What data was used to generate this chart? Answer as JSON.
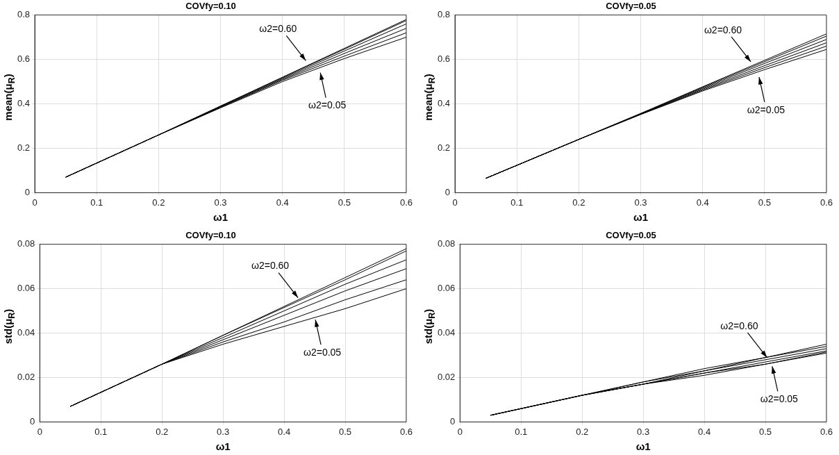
{
  "chart_data": [
    {
      "type": "line",
      "title": "COVfy=0.10",
      "xlabel": "ω1",
      "ylabel": "mean(μ$_{R}$)",
      "x": [
        0.05,
        0.2,
        0.3,
        0.4,
        0.5,
        0.6
      ],
      "series": [
        {
          "color": "#000000",
          "values": [
            0.07,
            0.26,
            0.39,
            0.52,
            0.65,
            0.78
          ]
        },
        {
          "color": "#000000",
          "values": [
            0.07,
            0.26,
            0.39,
            0.518,
            0.646,
            0.775
          ]
        },
        {
          "color": "#000000",
          "values": [
            0.07,
            0.26,
            0.388,
            0.514,
            0.638,
            0.76
          ]
        },
        {
          "color": "#000000",
          "values": [
            0.07,
            0.26,
            0.386,
            0.51,
            0.627,
            0.74
          ]
        },
        {
          "color": "#000000",
          "values": [
            0.07,
            0.26,
            0.384,
            0.506,
            0.615,
            0.72
          ]
        },
        {
          "color": "#000000",
          "values": [
            0.07,
            0.26,
            0.382,
            0.5,
            0.604,
            0.7
          ]
        }
      ],
      "xlim": [
        0,
        0.6
      ],
      "xticks": [
        0,
        0.1,
        0.2,
        0.3,
        0.4,
        0.5,
        0.6
      ],
      "ylim": [
        0,
        0.8
      ],
      "yticks": [
        0,
        0.2,
        0.4,
        0.6,
        0.8
      ],
      "grid": true,
      "legend": false,
      "marker": "none",
      "line_style": "solid",
      "annotations": [
        {
          "text": "ω2=0.60",
          "x": 0.44,
          "y": 0.585
        },
        {
          "text": "ω2=0.05",
          "x": 0.46,
          "y": 0.55
        }
      ]
    },
    {
      "type": "line",
      "title": "COVfy=0.05",
      "xlabel": "ω1",
      "ylabel": "mean(μ$_{R}$)",
      "x": [
        0.05,
        0.2,
        0.3,
        0.4,
        0.5,
        0.6
      ],
      "series": [
        {
          "color": "#000000",
          "values": [
            0.065,
            0.24,
            0.357,
            0.477,
            0.596,
            0.715
          ]
        },
        {
          "color": "#000000",
          "values": [
            0.065,
            0.24,
            0.356,
            0.474,
            0.59,
            0.705
          ]
        },
        {
          "color": "#000000",
          "values": [
            0.065,
            0.24,
            0.355,
            0.47,
            0.582,
            0.69
          ]
        },
        {
          "color": "#000000",
          "values": [
            0.065,
            0.24,
            0.354,
            0.466,
            0.572,
            0.675
          ]
        },
        {
          "color": "#000000",
          "values": [
            0.065,
            0.24,
            0.353,
            0.462,
            0.563,
            0.66
          ]
        },
        {
          "color": "#000000",
          "values": [
            0.065,
            0.24,
            0.352,
            0.458,
            0.554,
            0.645
          ]
        }
      ],
      "xlim": [
        0,
        0.6
      ],
      "xticks": [
        0,
        0.1,
        0.2,
        0.3,
        0.4,
        0.5,
        0.6
      ],
      "ylim": [
        0,
        0.8
      ],
      "yticks": [
        0,
        0.2,
        0.4,
        0.6,
        0.8
      ],
      "grid": true,
      "legend": false,
      "marker": "none",
      "line_style": "solid",
      "annotations": [
        {
          "text": "ω2=0.60",
          "x": 0.48,
          "y": 0.58
        },
        {
          "text": "ω2=0.05",
          "x": 0.49,
          "y": 0.53
        }
      ]
    },
    {
      "type": "line",
      "title": "COVfy=0.10",
      "xlabel": "ω1",
      "ylabel": "std(μ$_{R}$)",
      "x": [
        0.05,
        0.2,
        0.3,
        0.4,
        0.5,
        0.6
      ],
      "series": [
        {
          "color": "#000000",
          "values": [
            0.007,
            0.026,
            0.039,
            0.052,
            0.065,
            0.078
          ]
        },
        {
          "color": "#000000",
          "values": [
            0.007,
            0.026,
            0.039,
            0.0515,
            0.064,
            0.077
          ]
        },
        {
          "color": "#000000",
          "values": [
            0.007,
            0.026,
            0.038,
            0.05,
            0.062,
            0.073
          ]
        },
        {
          "color": "#000000",
          "values": [
            0.007,
            0.026,
            0.037,
            0.048,
            0.059,
            0.069
          ]
        },
        {
          "color": "#000000",
          "values": [
            0.007,
            0.026,
            0.036,
            0.045,
            0.055,
            0.064
          ]
        },
        {
          "color": "#000000",
          "values": [
            0.007,
            0.026,
            0.035,
            0.043,
            0.051,
            0.06
          ]
        }
      ],
      "xlim": [
        0,
        0.6
      ],
      "xticks": [
        0,
        0.1,
        0.2,
        0.3,
        0.4,
        0.5,
        0.6
      ],
      "ylim": [
        0,
        0.08
      ],
      "yticks": [
        0,
        0.02,
        0.04,
        0.06,
        0.08
      ],
      "grid": true,
      "legend": false,
      "marker": "none",
      "line_style": "solid",
      "annotations": [
        {
          "text": "ω2=0.60",
          "x": 0.425,
          "y": 0.055
        },
        {
          "text": "ω2=0.05",
          "x": 0.45,
          "y": 0.047
        }
      ]
    },
    {
      "type": "line",
      "title": "COVfy=0.05",
      "xlabel": "ω1",
      "ylabel": "std(μ$_{R}$)",
      "x": [
        0.05,
        0.2,
        0.3,
        0.4,
        0.5,
        0.6
      ],
      "series": [
        {
          "color": "#000000",
          "values": [
            0.003,
            0.012,
            0.018,
            0.024,
            0.029,
            0.035
          ]
        },
        {
          "color": "#000000",
          "values": [
            0.003,
            0.012,
            0.018,
            0.023,
            0.029,
            0.034
          ]
        },
        {
          "color": "#000000",
          "values": [
            0.003,
            0.012,
            0.017,
            0.023,
            0.028,
            0.033
          ]
        },
        {
          "color": "#000000",
          "values": [
            0.003,
            0.012,
            0.017,
            0.022,
            0.027,
            0.032
          ]
        },
        {
          "color": "#000000",
          "values": [
            0.003,
            0.012,
            0.017,
            0.022,
            0.026,
            0.0315
          ]
        },
        {
          "color": "#000000",
          "values": [
            0.003,
            0.012,
            0.017,
            0.021,
            0.026,
            0.031
          ]
        }
      ],
      "xlim": [
        0,
        0.6
      ],
      "xticks": [
        0,
        0.1,
        0.2,
        0.3,
        0.4,
        0.5,
        0.6
      ],
      "ylim": [
        0,
        0.08
      ],
      "yticks": [
        0,
        0.02,
        0.04,
        0.06,
        0.08
      ],
      "grid": true,
      "legend": false,
      "marker": "none",
      "line_style": "solid",
      "annotations": [
        {
          "text": "ω2=0.60",
          "x": 0.505,
          "y": 0.028
        },
        {
          "text": "ω2=0.05",
          "x": 0.51,
          "y": 0.026
        }
      ]
    }
  ]
}
